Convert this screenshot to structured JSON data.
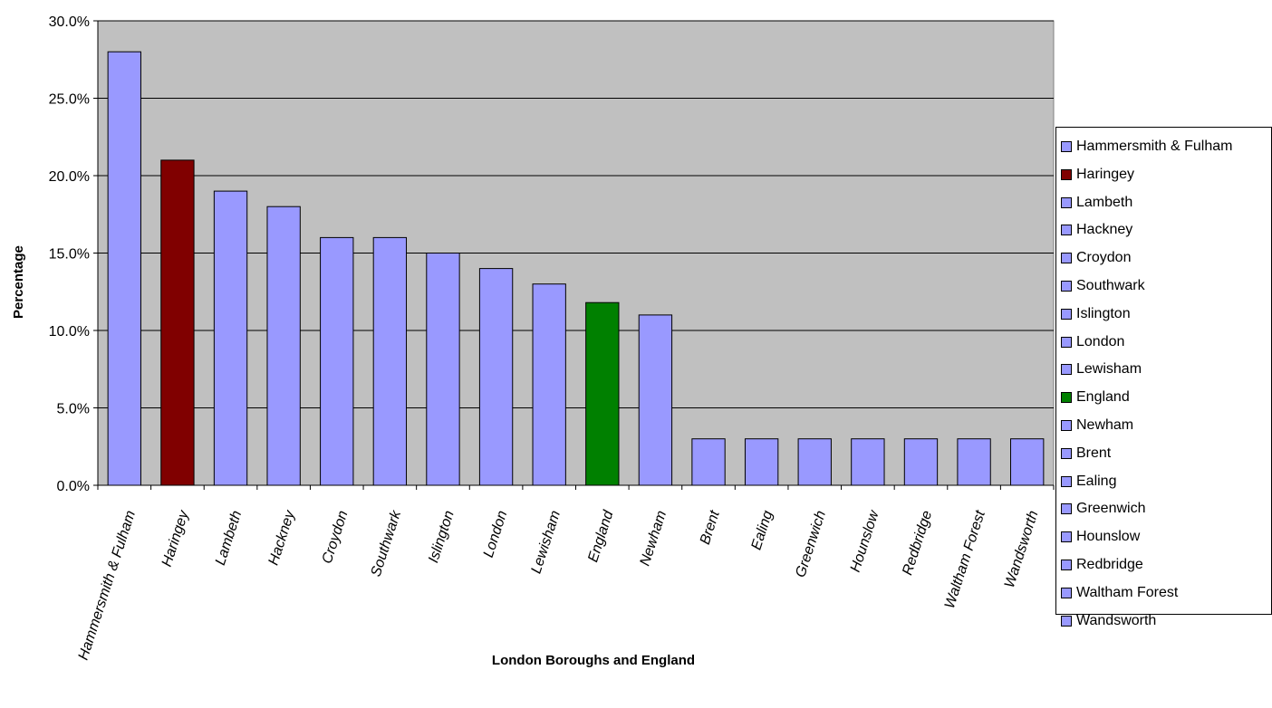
{
  "chart_data": {
    "type": "bar",
    "title": "",
    "xlabel": "London Boroughs and England",
    "ylabel": "Percentage",
    "ylim": [
      0,
      30
    ],
    "yticks": [
      "0.0%",
      "5.0%",
      "10.0%",
      "15.0%",
      "20.0%",
      "25.0%",
      "30.0%"
    ],
    "grid": "horizontal",
    "legend": "right",
    "plot_background": "#c0c0c0",
    "categories": [
      "Hammersmith & Fulham",
      "Haringey",
      "Lambeth",
      "Hackney",
      "Croydon",
      "Southwark",
      "Islington",
      "London",
      "Lewisham",
      "England",
      "Newham",
      "Brent",
      "Ealing",
      "Greenwich",
      "Hounslow",
      "Redbridge",
      "Waltham Forest",
      "Wandsworth"
    ],
    "values": [
      28,
      21,
      19,
      18,
      16,
      16,
      15,
      14,
      13,
      11.8,
      11,
      3,
      3,
      3,
      3,
      3,
      3,
      3
    ],
    "colors": [
      "#9999ff",
      "#800000",
      "#9999ff",
      "#9999ff",
      "#9999ff",
      "#9999ff",
      "#9999ff",
      "#9999ff",
      "#9999ff",
      "#008000",
      "#9999ff",
      "#9999ff",
      "#9999ff",
      "#9999ff",
      "#9999ff",
      "#9999ff",
      "#9999ff",
      "#9999ff"
    ]
  }
}
